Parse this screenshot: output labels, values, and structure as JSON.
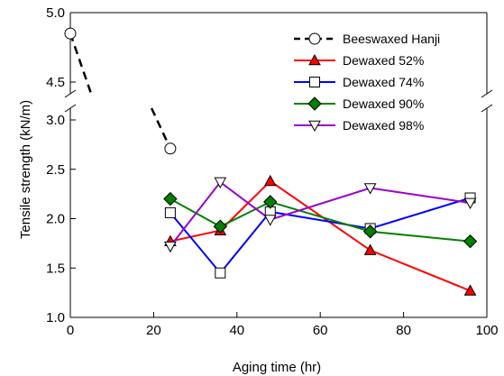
{
  "chart_data": {
    "type": "line",
    "xlabel": "Aging  time (hr)",
    "ylabel": "Tensile strength (kN/m)",
    "xlim": [
      0,
      100
    ],
    "ylim_lower": [
      1.0,
      3.0
    ],
    "ylim_upper": [
      4.5,
      5.0
    ],
    "broken_y_axis": true,
    "x_ticks": [
      "0",
      "20",
      "40",
      "60",
      "80",
      "100"
    ],
    "y_ticks_lower": [
      "1.0",
      "1.5",
      "2.0",
      "2.5",
      "3.0"
    ],
    "y_ticks_upper": [
      "4.5",
      "5.0"
    ],
    "grid": false,
    "legend_position": "top-right",
    "series": [
      {
        "name": "Beeswaxed Hanji",
        "color": "#000000",
        "marker": "circle",
        "fill": "#ffffff",
        "dashed": true,
        "x": [
          0,
          24
        ],
        "y": [
          4.85,
          2.71
        ]
      },
      {
        "name": "Dewaxed 52%",
        "color": "#ff0000",
        "marker": "triangle-up",
        "fill": "#ff0000",
        "dashed": false,
        "x": [
          24,
          36,
          48,
          72,
          96
        ],
        "y": [
          1.77,
          1.88,
          2.38,
          1.68,
          1.27
        ]
      },
      {
        "name": "Dewaxed 74%",
        "color": "#0000ff",
        "marker": "square",
        "fill": "#ffffff",
        "dashed": false,
        "x": [
          24,
          36,
          48,
          72,
          96
        ],
        "y": [
          2.06,
          1.45,
          2.07,
          1.9,
          2.21
        ]
      },
      {
        "name": "Dewaxed 90%",
        "color": "#008000",
        "marker": "diamond",
        "fill": "#008000",
        "dashed": false,
        "x": [
          24,
          36,
          48,
          72,
          96
        ],
        "y": [
          2.2,
          1.92,
          2.17,
          1.87,
          1.77
        ]
      },
      {
        "name": "Dewaxed 98%",
        "color": "#9900cc",
        "marker": "triangle-down",
        "fill": "#ffffff",
        "dashed": false,
        "x": [
          24,
          36,
          48,
          72,
          96
        ],
        "y": [
          1.72,
          2.37,
          1.99,
          2.31,
          2.16
        ]
      }
    ]
  }
}
